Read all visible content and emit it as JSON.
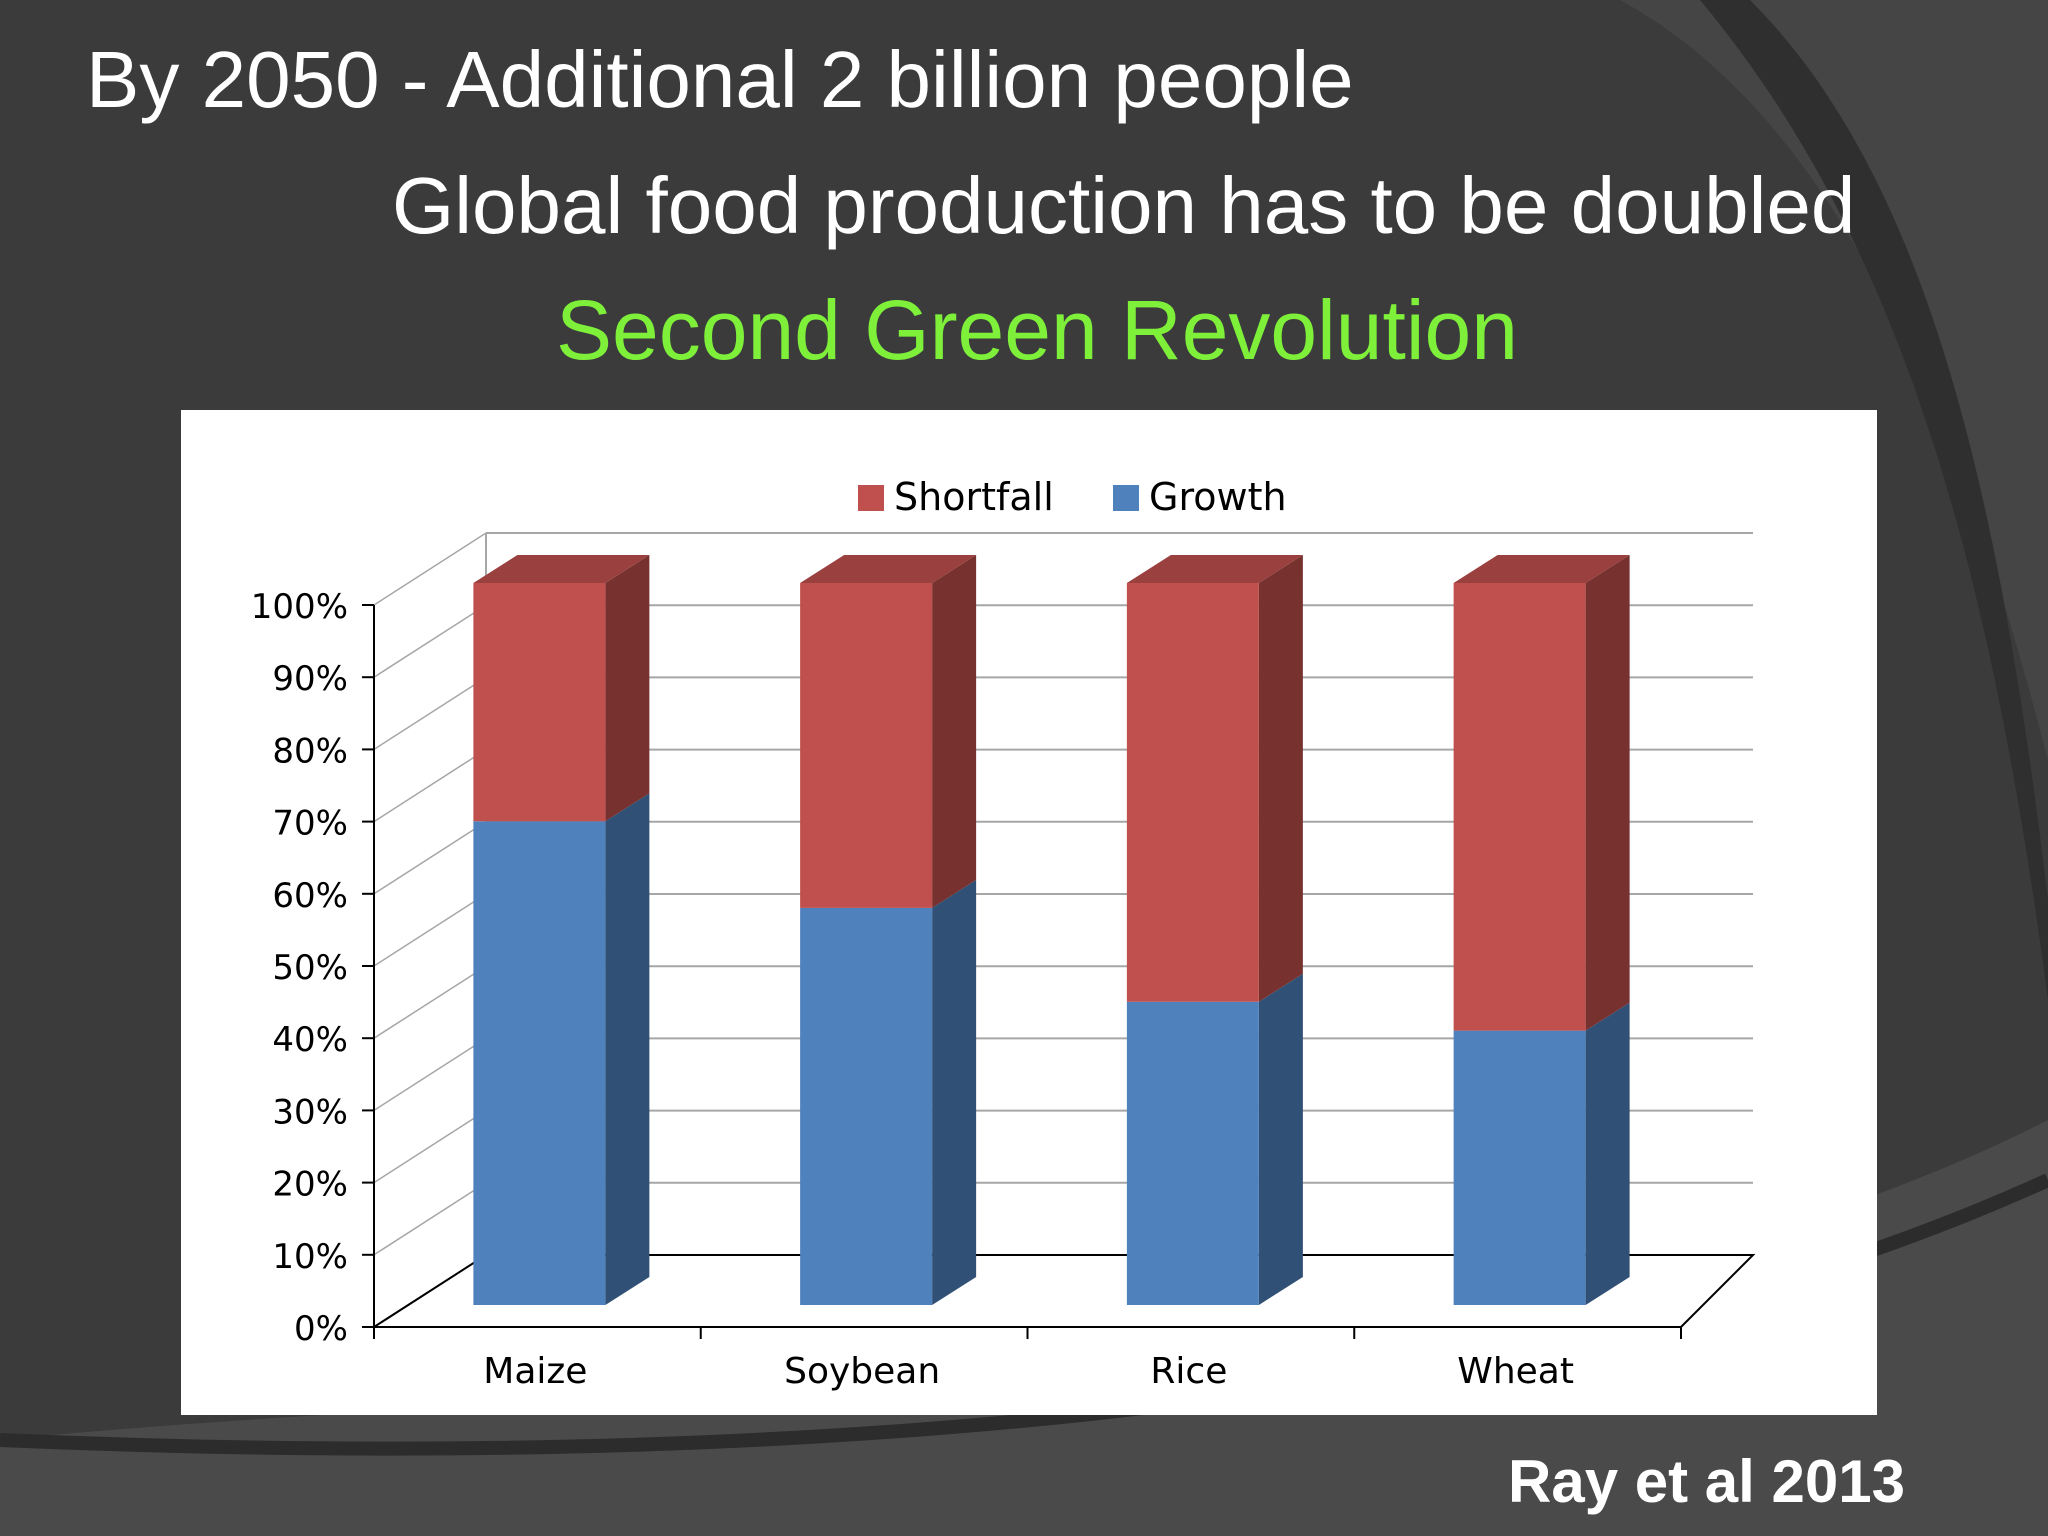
{
  "slide": {
    "headline_1": "By 2050 - Additional 2 billion people",
    "headline_2": "Global food production has to be doubled",
    "headline_3": "Second Green Revolution",
    "citation": "Ray et al 2013",
    "colors": {
      "background": "#3a3a3b",
      "text": "#ffffff",
      "accent_green": "#7ef03a"
    }
  },
  "chart_data": {
    "type": "bar",
    "stacked": true,
    "three_d": true,
    "percent_stacked": true,
    "categories": [
      "Maize",
      "Soybean",
      "Rice",
      "Wheat"
    ],
    "series": [
      {
        "name": "Growth",
        "values": [
          67,
          55,
          42,
          38
        ],
        "color": "#4f81bd"
      },
      {
        "name": "Shortfall",
        "values": [
          33,
          45,
          58,
          62
        ],
        "color": "#c0504d"
      }
    ],
    "ylim": [
      0,
      100
    ],
    "yticks": [
      "0%",
      "10%",
      "20%",
      "30%",
      "40%",
      "50%",
      "60%",
      "70%",
      "80%",
      "90%",
      "100%"
    ],
    "legend": {
      "position": "top",
      "entries": [
        "Shortfall",
        "Growth"
      ]
    },
    "grid": true,
    "title": "",
    "xlabel": "",
    "ylabel": ""
  }
}
